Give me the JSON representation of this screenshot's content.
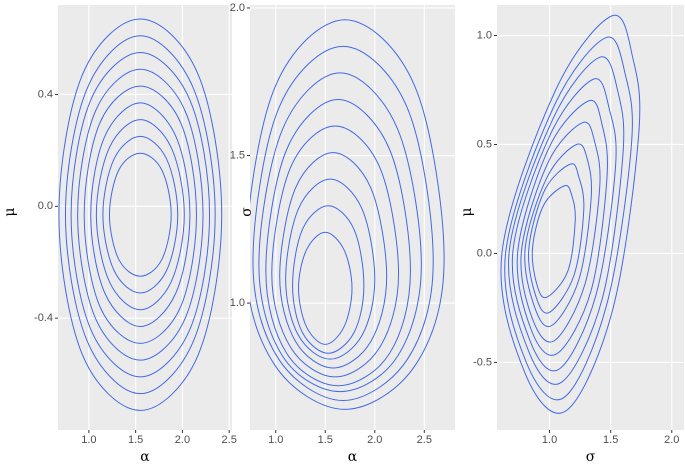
{
  "chart_data": [
    {
      "type": "contour",
      "x_label": "α",
      "y_label": "μ",
      "color": "#4169e8",
      "grid": true,
      "xlim": [
        0.67,
        2.53
      ],
      "ylim": [
        -0.8,
        0.72
      ],
      "xticks": [
        {
          "value": 1,
          "label": "1.0"
        },
        1.5,
        {
          "value": 2,
          "label": "2.0"
        },
        2.5
      ],
      "yticks": [
        -0.4,
        {
          "value": 0,
          "label": "0.0"
        },
        0.4
      ],
      "contours": [
        {
          "x": [
            1.88,
            1.78,
            1.55,
            1.32,
            1.22,
            1.32,
            1.55,
            1.78
          ],
          "y": [
            -0.03,
            0.13,
            0.19,
            0.13,
            -0.03,
            -0.19,
            -0.25,
            -0.19
          ]
        },
        {
          "x": [
            1.95,
            1.83,
            1.55,
            1.27,
            1.15,
            1.27,
            1.55,
            1.83
          ],
          "y": [
            -0.03,
            0.17,
            0.25,
            0.17,
            -0.03,
            -0.23,
            -0.31,
            -0.23
          ]
        },
        {
          "x": [
            2.02,
            1.88,
            1.55,
            1.22,
            1.08,
            1.22,
            1.55,
            1.88
          ],
          "y": [
            -0.03,
            0.21,
            0.31,
            0.21,
            -0.03,
            -0.27,
            -0.37,
            -0.27
          ]
        },
        {
          "x": [
            2.08,
            1.93,
            1.55,
            1.17,
            1.02,
            1.17,
            1.55,
            1.93
          ],
          "y": [
            -0.03,
            0.25,
            0.37,
            0.25,
            -0.03,
            -0.31,
            -0.43,
            -0.31
          ]
        },
        {
          "x": [
            2.15,
            1.98,
            1.55,
            1.12,
            0.95,
            1.12,
            1.55,
            1.98
          ],
          "y": [
            -0.03,
            0.3,
            0.43,
            0.3,
            -0.03,
            -0.36,
            -0.49,
            -0.36
          ]
        },
        {
          "x": [
            2.22,
            2.03,
            1.55,
            1.07,
            0.88,
            1.07,
            1.55,
            2.03
          ],
          "y": [
            -0.03,
            0.34,
            0.49,
            0.34,
            -0.03,
            -0.4,
            -0.55,
            -0.4
          ]
        },
        {
          "x": [
            2.29,
            2.08,
            1.55,
            1.02,
            0.81,
            1.02,
            1.55,
            2.08
          ],
          "y": [
            -0.03,
            0.38,
            0.55,
            0.38,
            -0.03,
            -0.44,
            -0.61,
            -0.44
          ]
        },
        {
          "x": [
            2.35,
            2.12,
            1.55,
            0.98,
            0.75,
            0.98,
            1.55,
            2.12
          ],
          "y": [
            -0.03,
            0.42,
            0.61,
            0.42,
            -0.03,
            -0.48,
            -0.67,
            -0.48
          ]
        },
        {
          "x": [
            2.42,
            2.17,
            1.55,
            0.93,
            0.68,
            0.93,
            1.55,
            2.17
          ],
          "y": [
            -0.03,
            0.47,
            0.67,
            0.47,
            -0.03,
            -0.53,
            -0.73,
            -0.53
          ]
        }
      ]
    },
    {
      "type": "contour",
      "x_label": "α",
      "y_label": "σ",
      "color": "#4169e8",
      "grid": true,
      "xlim": [
        0.74,
        2.81
      ],
      "ylim": [
        0.57,
        2.01
      ],
      "xticks": [
        {
          "value": 1,
          "label": "1.0"
        },
        1.5,
        {
          "value": 2,
          "label": "2.0"
        },
        2.5
      ],
      "yticks": [
        {
          "value": 1,
          "label": "1.0"
        },
        1.5,
        {
          "value": 2,
          "label": "2.0"
        }
      ],
      "contours": [
        {
          "x": [
            1.77,
            1.69,
            1.5,
            1.31,
            1.23,
            1.31,
            1.5,
            1.69
          ],
          "y": [
            1.05,
            1.18,
            1.24,
            1.18,
            1.05,
            0.92,
            0.86,
            0.92
          ]
        },
        {
          "x": [
            1.89,
            1.79,
            1.53,
            1.27,
            1.17,
            1.27,
            1.53,
            1.79
          ],
          "y": [
            1.06,
            1.25,
            1.33,
            1.25,
            1.06,
            0.9,
            0.83,
            0.9
          ]
        },
        {
          "x": [
            2.0,
            1.87,
            1.55,
            1.23,
            1.1,
            1.23,
            1.55,
            1.87
          ],
          "y": [
            1.08,
            1.32,
            1.42,
            1.32,
            1.08,
            0.89,
            0.81,
            0.89
          ]
        },
        {
          "x": [
            2.12,
            1.96,
            1.58,
            1.2,
            1.04,
            1.2,
            1.58,
            1.96
          ],
          "y": [
            1.09,
            1.39,
            1.51,
            1.39,
            1.09,
            0.87,
            0.78,
            0.87
          ]
        },
        {
          "x": [
            2.24,
            2.05,
            1.6,
            1.15,
            0.96,
            1.15,
            1.6,
            2.05
          ],
          "y": [
            1.1,
            1.46,
            1.6,
            1.46,
            1.1,
            0.85,
            0.75,
            0.85
          ]
        },
        {
          "x": [
            2.36,
            2.15,
            1.63,
            1.11,
            0.9,
            1.11,
            1.63,
            2.15
          ],
          "y": [
            1.11,
            1.52,
            1.69,
            1.52,
            1.11,
            0.83,
            0.72,
            0.83
          ]
        },
        {
          "x": [
            2.47,
            2.23,
            1.65,
            1.07,
            0.83,
            1.07,
            1.65,
            2.23
          ],
          "y": [
            1.13,
            1.59,
            1.78,
            1.59,
            1.13,
            0.82,
            0.7,
            0.82
          ]
        },
        {
          "x": [
            2.59,
            2.33,
            1.68,
            1.03,
            0.77,
            1.03,
            1.68,
            2.33
          ],
          "y": [
            1.14,
            1.66,
            1.87,
            1.66,
            1.14,
            0.81,
            0.67,
            0.81
          ]
        },
        {
          "x": [
            2.7,
            2.41,
            1.7,
            0.99,
            0.7,
            0.99,
            1.7,
            2.41
          ],
          "y": [
            1.15,
            1.73,
            1.96,
            1.73,
            1.15,
            0.79,
            0.64,
            0.79
          ]
        }
      ]
    },
    {
      "type": "contour",
      "x_label": "σ",
      "y_label": "μ",
      "color": "#4169e8",
      "grid": true,
      "xlim": [
        0.57,
        2.1
      ],
      "ylim": [
        -0.81,
        1.14
      ],
      "xticks": [
        {
          "value": 1,
          "label": "1.0"
        },
        1.5,
        {
          "value": 2,
          "label": "2.0"
        }
      ],
      "yticks": [
        -0.5,
        {
          "value": 0,
          "label": "0.0"
        },
        0.5,
        {
          "value": 1,
          "label": "1.0"
        }
      ],
      "contours": [
        {
          "x": [
            1.21,
            1.18,
            1.12,
            0.95,
            0.86,
            0.9,
            0.98,
            1.15
          ],
          "y": [
            0.15,
            0.27,
            0.31,
            0.22,
            0.02,
            -0.15,
            -0.2,
            -0.08
          ]
        },
        {
          "x": [
            1.28,
            1.24,
            1.17,
            0.96,
            0.83,
            0.89,
            1.0,
            1.2
          ],
          "y": [
            0.2,
            0.35,
            0.41,
            0.29,
            0.02,
            -0.2,
            -0.27,
            -0.1
          ]
        },
        {
          "x": [
            1.34,
            1.31,
            1.22,
            0.98,
            0.8,
            0.88,
            1.02,
            1.24
          ],
          "y": [
            0.25,
            0.43,
            0.5,
            0.35,
            0.02,
            -0.25,
            -0.33,
            -0.12
          ]
        },
        {
          "x": [
            1.41,
            1.37,
            1.27,
            0.99,
            0.77,
            0.86,
            1.04,
            1.29
          ],
          "y": [
            0.3,
            0.51,
            0.6,
            0.42,
            0.01,
            -0.3,
            -0.4,
            -0.14
          ]
        },
        {
          "x": [
            1.47,
            1.43,
            1.32,
            1.0,
            0.74,
            0.85,
            1.06,
            1.34
          ],
          "y": [
            0.35,
            0.59,
            0.7,
            0.49,
            0.01,
            -0.35,
            -0.46,
            -0.17
          ]
        },
        {
          "x": [
            1.54,
            1.49,
            1.36,
            1.01,
            0.7,
            0.84,
            1.08,
            1.38
          ],
          "y": [
            0.4,
            0.66,
            0.8,
            0.55,
            0.01,
            -0.4,
            -0.53,
            -0.19
          ]
        },
        {
          "x": [
            1.6,
            1.56,
            1.41,
            1.03,
            0.67,
            0.83,
            1.1,
            1.43
          ],
          "y": [
            0.45,
            0.74,
            0.9,
            0.62,
            0.01,
            -0.45,
            -0.59,
            -0.21
          ]
        },
        {
          "x": [
            1.67,
            1.62,
            1.46,
            1.04,
            0.64,
            0.81,
            1.12,
            1.47
          ],
          "y": [
            0.5,
            0.82,
            0.99,
            0.68,
            0.0,
            -0.5,
            -0.66,
            -0.23
          ]
        },
        {
          "x": [
            1.73,
            1.68,
            1.51,
            1.05,
            0.61,
            0.8,
            1.14,
            1.52
          ],
          "y": [
            0.55,
            0.9,
            1.09,
            0.75,
            0.0,
            -0.55,
            -0.72,
            -0.25
          ]
        }
      ]
    }
  ]
}
